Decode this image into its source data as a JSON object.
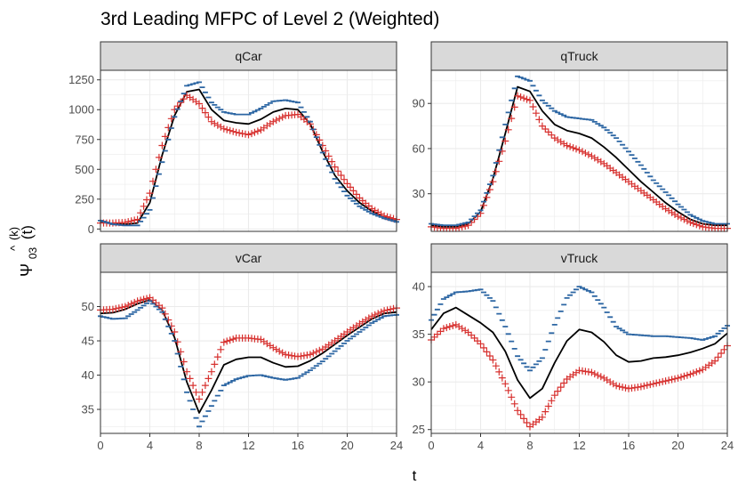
{
  "title": "3rd Leading MFPC of Level 2 (Weighted)",
  "xlabel": "t",
  "ylabel": {
    "hat": "^",
    "sup": "(k)",
    "symbol": "Ψ",
    "sub": "03",
    "arg": "(t)"
  },
  "colors": {
    "mean": "#000000",
    "plus": "#d7312f",
    "minus": "#2c66a3",
    "panel_bg": "#ffffff",
    "grid": "#ebebeb",
    "strip_bg": "#d9d9d9"
  },
  "chart_data": [
    {
      "type": "line",
      "panel": "qCar",
      "xlim": [
        0,
        24
      ],
      "ylim": [
        -20,
        1330
      ],
      "x_ticks": [
        0,
        4,
        8,
        12,
        16,
        20,
        24
      ],
      "y_ticks": [
        0,
        250,
        500,
        750,
        1000,
        1250
      ],
      "x": [
        0,
        1,
        2,
        3,
        4,
        5,
        6,
        7,
        8,
        9,
        10,
        11,
        12,
        13,
        14,
        15,
        16,
        17,
        18,
        19,
        20,
        21,
        22,
        23,
        24
      ],
      "series": [
        {
          "role": "mean",
          "values": [
            60,
            45,
            40,
            50,
            220,
            620,
            950,
            1150,
            1170,
            1000,
            910,
            890,
            880,
            920,
            980,
            1010,
            1000,
            880,
            650,
            450,
            320,
            220,
            150,
            100,
            70
          ]
        },
        {
          "role": "plus",
          "values": [
            50,
            50,
            55,
            80,
            300,
            700,
            1000,
            1120,
            1050,
            900,
            840,
            810,
            790,
            830,
            900,
            950,
            960,
            880,
            700,
            520,
            380,
            260,
            170,
            110,
            80
          ]
        },
        {
          "role": "minus",
          "values": [
            70,
            40,
            30,
            30,
            160,
            560,
            940,
            1200,
            1230,
            1060,
            980,
            960,
            960,
            1010,
            1070,
            1080,
            1060,
            900,
            640,
            420,
            280,
            190,
            130,
            90,
            60
          ]
        }
      ]
    },
    {
      "type": "line",
      "panel": "qTruck",
      "xlim": [
        0,
        24
      ],
      "ylim": [
        5,
        112
      ],
      "x_ticks": [
        0,
        4,
        8,
        12,
        16,
        20,
        24
      ],
      "y_ticks": [
        30,
        60,
        90
      ],
      "x": [
        0,
        1,
        2,
        3,
        4,
        5,
        6,
        7,
        8,
        9,
        10,
        11,
        12,
        13,
        14,
        15,
        16,
        17,
        18,
        19,
        20,
        21,
        22,
        23,
        24
      ],
      "series": [
        {
          "role": "mean",
          "values": [
            9,
            8,
            8,
            10,
            18,
            40,
            70,
            101,
            98,
            85,
            76,
            72,
            70,
            67,
            61,
            54,
            46,
            38,
            31,
            24,
            18,
            13,
            10,
            9,
            9
          ]
        },
        {
          "role": "plus",
          "values": [
            8,
            7,
            7,
            9,
            17,
            38,
            65,
            95,
            92,
            75,
            67,
            62,
            59,
            55,
            50,
            44,
            38,
            32,
            26,
            20,
            15,
            11,
            8,
            7,
            7
          ]
        },
        {
          "role": "minus",
          "values": [
            10,
            9,
            9,
            11,
            19,
            42,
            76,
            108,
            105,
            92,
            85,
            81,
            80,
            79,
            74,
            67,
            58,
            49,
            39,
            31,
            23,
            16,
            12,
            10,
            10
          ]
        }
      ]
    },
    {
      "type": "line",
      "panel": "vCar",
      "xlim": [
        0,
        24
      ],
      "ylim": [
        31.5,
        55.0
      ],
      "x_ticks": [
        0,
        4,
        8,
        12,
        16,
        20,
        24
      ],
      "y_ticks": [
        35,
        40,
        45,
        50
      ],
      "x": [
        0,
        1,
        2,
        3,
        4,
        5,
        6,
        7,
        8,
        9,
        10,
        11,
        12,
        13,
        14,
        15,
        16,
        17,
        18,
        19,
        20,
        21,
        22,
        23,
        24
      ],
      "series": [
        {
          "role": "mean",
          "values": [
            49.0,
            49.1,
            49.6,
            50.4,
            51.0,
            49.5,
            45.5,
            39.0,
            34.5,
            37.8,
            41.5,
            42.3,
            42.6,
            42.6,
            41.8,
            41.2,
            41.3,
            42.1,
            43.2,
            44.5,
            45.8,
            47.0,
            48.2,
            49.0,
            49.2
          ]
        },
        {
          "role": "plus",
          "values": [
            49.5,
            49.6,
            50.0,
            50.8,
            51.3,
            49.8,
            46.3,
            40.5,
            36.5,
            40.5,
            44.8,
            45.4,
            45.4,
            45.2,
            44.0,
            43.0,
            42.7,
            43.0,
            43.8,
            45.0,
            46.3,
            47.5,
            48.6,
            49.4,
            49.8
          ]
        },
        {
          "role": "minus",
          "values": [
            48.6,
            48.2,
            48.3,
            49.5,
            50.8,
            49.2,
            45.0,
            37.5,
            32.5,
            35.5,
            38.5,
            39.4,
            39.9,
            40.0,
            39.6,
            39.3,
            39.6,
            40.7,
            42.0,
            43.5,
            45.0,
            46.3,
            47.6,
            48.6,
            48.8
          ]
        }
      ]
    },
    {
      "type": "line",
      "panel": "vTruck",
      "xlim": [
        0,
        24
      ],
      "ylim": [
        24.6,
        41.5
      ],
      "x_ticks": [
        0,
        4,
        8,
        12,
        16,
        20,
        24
      ],
      "y_ticks": [
        25,
        30,
        35,
        40
      ],
      "x": [
        0,
        1,
        2,
        3,
        4,
        5,
        6,
        7,
        8,
        9,
        10,
        11,
        12,
        13,
        14,
        15,
        16,
        17,
        18,
        19,
        20,
        21,
        22,
        23,
        24
      ],
      "series": [
        {
          "role": "mean",
          "values": [
            35.5,
            37.2,
            37.8,
            37.0,
            36.2,
            35.2,
            33.2,
            30.2,
            28.3,
            29.3,
            32.0,
            34.3,
            35.5,
            35.2,
            34.2,
            32.8,
            32.1,
            32.2,
            32.5,
            32.6,
            32.8,
            33.1,
            33.5,
            34.0,
            35.1
          ]
        },
        {
          "role": "plus",
          "values": [
            34.4,
            35.6,
            36.0,
            35.2,
            34.0,
            32.3,
            29.8,
            27.0,
            25.3,
            26.3,
            28.6,
            30.3,
            31.2,
            31.0,
            30.4,
            29.6,
            29.3,
            29.5,
            29.8,
            30.1,
            30.4,
            30.8,
            31.3,
            32.2,
            33.8
          ]
        },
        {
          "role": "minus",
          "values": [
            36.5,
            38.7,
            39.4,
            39.5,
            39.7,
            38.5,
            35.8,
            32.7,
            31.2,
            32.5,
            36.0,
            38.8,
            40.0,
            39.4,
            37.8,
            35.8,
            35.0,
            34.9,
            34.8,
            34.8,
            34.7,
            34.6,
            34.4,
            34.8,
            35.9
          ]
        }
      ]
    }
  ]
}
